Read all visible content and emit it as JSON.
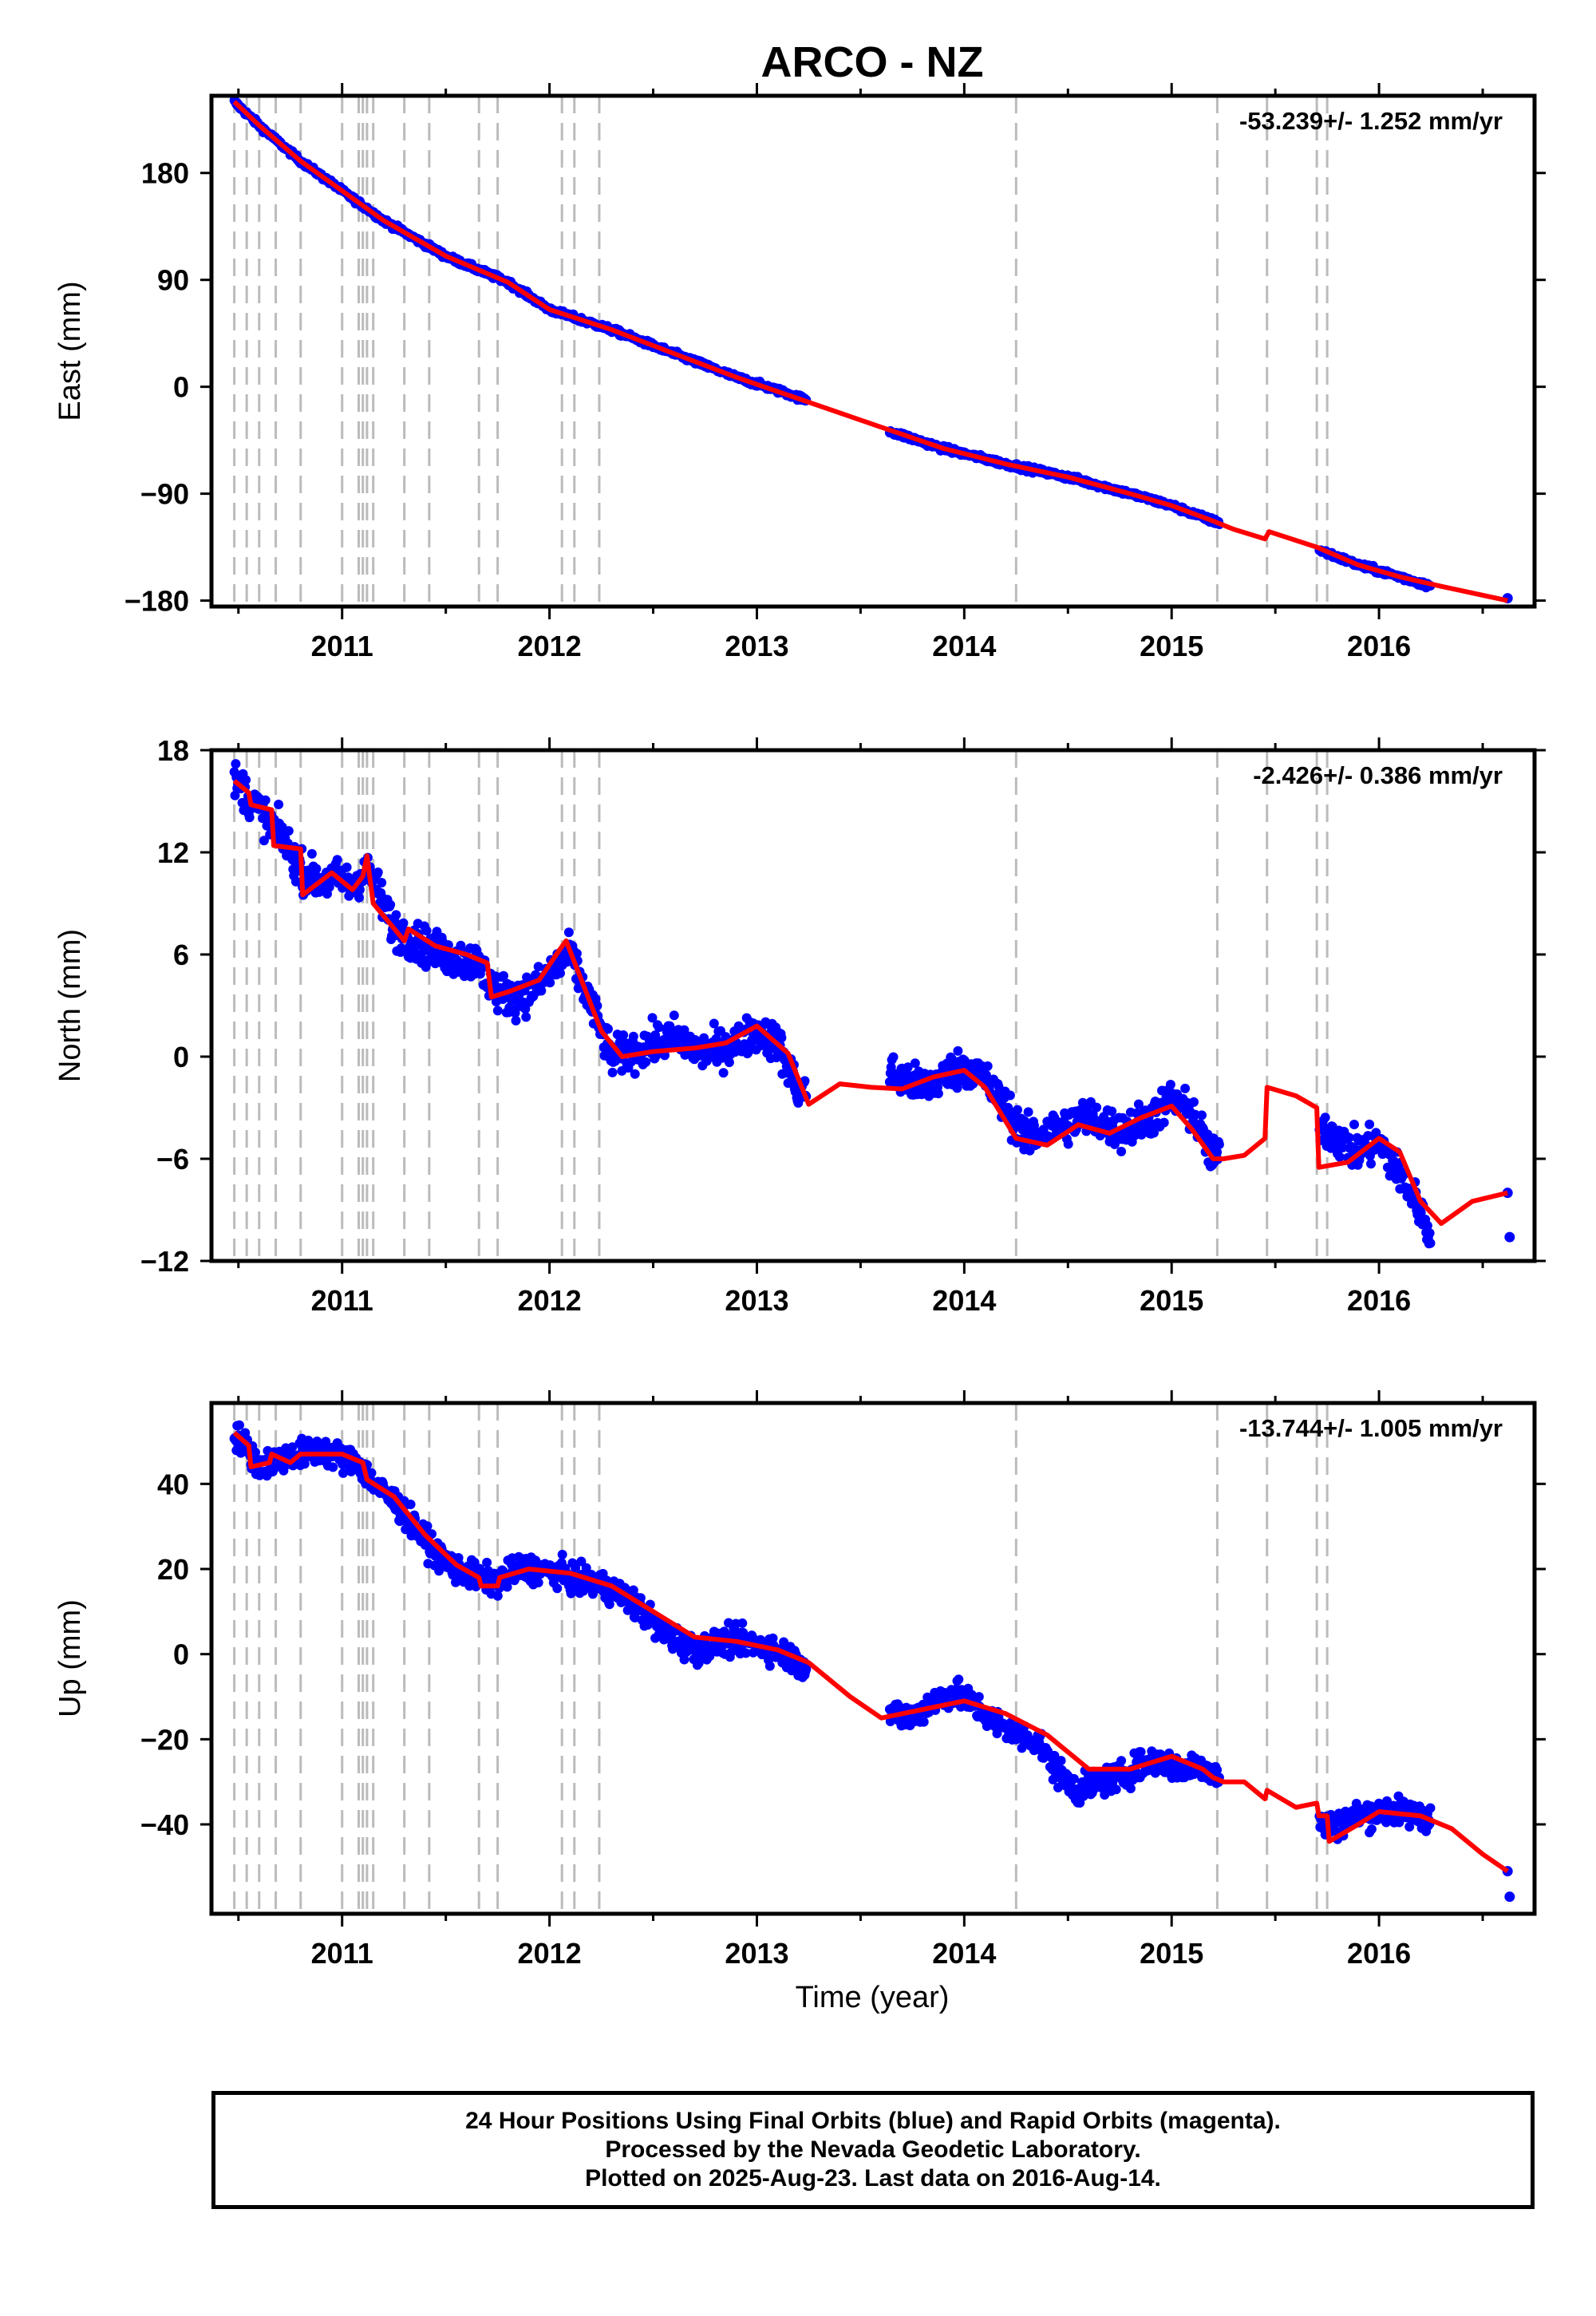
{
  "title": "ARCO - NZ",
  "xlabel": "Time (year)",
  "footer": {
    "line1": "24 Hour Positions Using Final Orbits (blue) and Rapid Orbits (magenta).",
    "line2": "Processed by the Nevada Geodetic Laboratory.",
    "line3": "Plotted on 2025-Aug-23. Last data on 2016-Aug-14."
  },
  "colors": {
    "final_orbits": "#0000ff",
    "model": "#ff0000",
    "event_lines": "#bbbbbb"
  },
  "chart_data": [
    {
      "type": "scatter",
      "component": "east",
      "ylabel": "East (mm)",
      "rate_label": "-53.239+/- 1.252 mm/yr",
      "xlim": [
        2010.37,
        2016.75
      ],
      "ylim": [
        -185,
        245
      ],
      "yticks": [
        180,
        90,
        0,
        -90,
        -180
      ],
      "ytick_labels": [
        "180",
        "90",
        "0",
        "−90",
        "−180"
      ],
      "xticks": [
        2011,
        2012,
        2013,
        2014,
        2015,
        2016
      ],
      "xtick_labels": [
        "2011",
        "2012",
        "2013",
        "2014",
        "2015",
        "2016"
      ],
      "grid": false,
      "series": [
        {
          "kind": "observations",
          "x": [
            2010.48,
            2010.6,
            2010.8,
            2011.0,
            2011.2,
            2011.5,
            2011.8,
            2012.0,
            2012.3,
            2012.6,
            2012.9,
            2013.1,
            2013.22,
            2013.65,
            2013.9,
            2014.2,
            2014.5,
            2014.8,
            2015.0,
            2015.2,
            2015.72,
            2015.9,
            2016.1,
            2016.25,
            2016.62
          ],
          "y": [
            240,
            220,
            190,
            165,
            140,
            110,
            88,
            65,
            48,
            28,
            8,
            -3,
            -10,
            -38,
            -52,
            -65,
            -76,
            -90,
            -100,
            -113,
            -138,
            -150,
            -160,
            -168,
            -178
          ]
        },
        {
          "kind": "model",
          "x": [
            2010.48,
            2010.6,
            2010.8,
            2011.0,
            2011.2,
            2011.5,
            2011.8,
            2012.0,
            2012.3,
            2012.6,
            2012.9,
            2013.2,
            2013.6,
            2013.9,
            2014.2,
            2014.5,
            2014.8,
            2015.0,
            2015.2,
            2015.3,
            2015.45,
            2015.47,
            2015.7,
            2015.9,
            2016.1,
            2016.3,
            2016.62
          ],
          "y": [
            240,
            220,
            190,
            165,
            140,
            110,
            88,
            65,
            48,
            28,
            8,
            -10,
            -34,
            -52,
            -65,
            -76,
            -90,
            -100,
            -113,
            -120,
            -128,
            -122,
            -135,
            -150,
            -160,
            -168,
            -180
          ]
        }
      ]
    },
    {
      "type": "scatter",
      "component": "north",
      "ylabel": "North (mm)",
      "rate_label": "-2.426+/- 0.386 mm/yr",
      "xlim": [
        2010.37,
        2016.75
      ],
      "ylim": [
        -12,
        18
      ],
      "yticks": [
        18,
        12,
        6,
        0,
        -6,
        -12
      ],
      "ytick_labels": [
        "18",
        "12",
        "6",
        "0",
        "−6",
        "−12"
      ],
      "xticks": [
        2011,
        2012,
        2013,
        2014,
        2015,
        2016
      ],
      "xtick_labels": [
        "2011",
        "2012",
        "2013",
        "2014",
        "2015",
        "2016"
      ],
      "grid": false,
      "series": [
        {
          "kind": "observations",
          "x": [
            2010.48,
            2010.52,
            2010.56,
            2010.62,
            2010.7,
            2010.8,
            2010.9,
            2011.0,
            2011.05,
            2011.1,
            2011.15,
            2011.25,
            2011.35,
            2011.45,
            2011.55,
            2011.65,
            2011.75,
            2011.85,
            2011.95,
            2012.05,
            2012.1,
            2012.2,
            2012.3,
            2012.45,
            2012.6,
            2012.75,
            2012.9,
            2013.0,
            2013.1,
            2013.2,
            2013.65,
            2013.8,
            2013.95,
            2014.05,
            2014.2,
            2014.3,
            2014.45,
            2014.6,
            2014.75,
            2014.9,
            2015.0,
            2015.1,
            2015.2,
            2015.72,
            2015.8,
            2015.9,
            2016.0,
            2016.1,
            2016.2,
            2016.24,
            2016.62,
            2016.63
          ],
          "y": [
            16.2,
            15.8,
            15.0,
            14.2,
            13.1,
            11.0,
            10.2,
            10.5,
            9.8,
            11.0,
            10.4,
            7.5,
            6.8,
            6.2,
            5.8,
            5.5,
            3.8,
            3.4,
            4.2,
            5.5,
            6.0,
            3.0,
            0.0,
            0.5,
            1.2,
            0.2,
            0.8,
            1.5,
            0.8,
            -2.0,
            -1.0,
            -1.8,
            -0.8,
            -0.6,
            -3.0,
            -4.8,
            -4.2,
            -3.5,
            -4.4,
            -3.6,
            -2.5,
            -3.4,
            -6.0,
            -4.0,
            -4.8,
            -5.6,
            -5.0,
            -7.0,
            -9.0,
            -10.5,
            -8.0,
            -10.6
          ]
        },
        {
          "kind": "model",
          "x": [
            2010.48,
            2010.55,
            2010.56,
            2010.66,
            2010.67,
            2010.8,
            2010.81,
            2010.95,
            2011.05,
            2011.1,
            2011.12,
            2011.15,
            2011.3,
            2011.32,
            2011.45,
            2011.6,
            2011.7,
            2011.72,
            2011.8,
            2011.95,
            2012.05,
            2012.08,
            2012.25,
            2012.35,
            2012.5,
            2012.7,
            2012.85,
            2013.0,
            2013.15,
            2013.25,
            2013.4,
            2013.55,
            2013.7,
            2013.85,
            2014.0,
            2014.1,
            2014.25,
            2014.4,
            2014.55,
            2014.7,
            2014.85,
            2015.0,
            2015.1,
            2015.2,
            2015.25,
            2015.35,
            2015.45,
            2015.46,
            2015.6,
            2015.7,
            2015.71,
            2015.85,
            2016.0,
            2016.1,
            2016.2,
            2016.3,
            2016.45,
            2016.62
          ],
          "y": [
            16.2,
            15.5,
            14.8,
            14.5,
            12.4,
            12.2,
            9.5,
            10.8,
            9.8,
            10.6,
            11.8,
            9.0,
            6.8,
            7.5,
            6.5,
            6.0,
            5.5,
            3.5,
            3.8,
            4.5,
            6.3,
            6.8,
            1.5,
            0.0,
            0.3,
            0.5,
            0.8,
            1.8,
            0.2,
            -2.8,
            -1.6,
            -1.8,
            -1.9,
            -1.2,
            -0.8,
            -1.8,
            -4.8,
            -5.2,
            -4.0,
            -4.5,
            -3.6,
            -2.9,
            -4.3,
            -6.0,
            -6.0,
            -5.8,
            -4.8,
            -1.8,
            -2.3,
            -3.0,
            -6.5,
            -6.2,
            -4.8,
            -5.6,
            -8.5,
            -9.8,
            -8.5,
            -8.0
          ]
        }
      ]
    },
    {
      "type": "scatter",
      "component": "up",
      "ylabel": "Up (mm)",
      "rate_label": "-13.744+/- 1.005 mm/yr",
      "xlim": [
        2010.37,
        2016.75
      ],
      "ylim": [
        -61,
        59
      ],
      "yticks": [
        40,
        20,
        0,
        -20,
        -40
      ],
      "ytick_labels": [
        "40",
        "20",
        "0",
        "−20",
        "−40"
      ],
      "xticks": [
        2011,
        2012,
        2013,
        2014,
        2015,
        2016
      ],
      "xtick_labels": [
        "2011",
        "2012",
        "2013",
        "2014",
        "2015",
        "2016"
      ],
      "grid": false,
      "series": [
        {
          "kind": "observations",
          "x": [
            2010.48,
            2010.55,
            2010.6,
            2010.7,
            2010.8,
            2010.9,
            2011.0,
            2011.08,
            2011.15,
            2011.25,
            2011.35,
            2011.45,
            2011.55,
            2011.65,
            2011.75,
            2011.85,
            2011.95,
            2012.05,
            2012.15,
            2012.25,
            2012.35,
            2012.45,
            2012.55,
            2012.7,
            2012.85,
            2012.95,
            2013.1,
            2013.2,
            2013.65,
            2013.75,
            2013.85,
            2013.95,
            2014.05,
            2014.15,
            2014.25,
            2014.35,
            2014.45,
            2014.55,
            2014.65,
            2014.75,
            2014.85,
            2014.95,
            2015.05,
            2015.15,
            2015.2,
            2015.72,
            2015.8,
            2015.9,
            2016.0,
            2016.1,
            2016.2,
            2016.25,
            2016.62,
            2016.63
          ],
          "y": [
            52,
            48,
            44,
            46,
            47,
            48,
            46,
            45,
            40,
            36,
            30,
            24,
            20,
            18,
            17,
            20,
            20,
            19,
            17,
            16,
            14,
            10,
            5,
            1,
            3,
            3,
            1,
            -2,
            -14,
            -15,
            -11,
            -9,
            -12,
            -16,
            -19,
            -20,
            -28,
            -32,
            -30,
            -29,
            -26,
            -25,
            -27,
            -26,
            -28,
            -40,
            -40,
            -38,
            -37,
            -37,
            -38,
            -38,
            -51,
            -57
          ]
        },
        {
          "kind": "model",
          "x": [
            2010.48,
            2010.55,
            2010.56,
            2010.65,
            2010.66,
            2010.75,
            2010.8,
            2011.0,
            2011.1,
            2011.12,
            2011.25,
            2011.4,
            2011.55,
            2011.66,
            2011.67,
            2011.75,
            2011.76,
            2011.9,
            2012.1,
            2012.3,
            2012.5,
            2012.7,
            2012.9,
            2013.1,
            2013.25,
            2013.45,
            2013.6,
            2013.8,
            2014.0,
            2014.2,
            2014.4,
            2014.6,
            2014.8,
            2015.0,
            2015.15,
            2015.2,
            2015.25,
            2015.35,
            2015.45,
            2015.46,
            2015.6,
            2015.7,
            2015.71,
            2015.75,
            2015.76,
            2015.9,
            2016.0,
            2016.2,
            2016.35,
            2016.5,
            2016.62
          ],
          "y": [
            52,
            49,
            44,
            45,
            47,
            45,
            47,
            47,
            45,
            41,
            37,
            28,
            21,
            18,
            16,
            16,
            18,
            20,
            19,
            16,
            10,
            4,
            3,
            1,
            -2,
            -10,
            -15,
            -13,
            -11,
            -14,
            -19,
            -27,
            -27,
            -24,
            -27,
            -29,
            -30,
            -30,
            -34,
            -32,
            -36,
            -35,
            -38,
            -38,
            -44,
            -40,
            -37,
            -38,
            -41,
            -47,
            -51
          ]
        }
      ]
    }
  ],
  "event_lines": [
    2010.48,
    2010.54,
    2010.6,
    2010.68,
    2010.8,
    2011.0,
    2011.08,
    2011.1,
    2011.12,
    2011.15,
    2011.3,
    2011.42,
    2011.66,
    2011.75,
    2012.06,
    2012.12,
    2012.24,
    2014.25,
    2015.22,
    2015.46,
    2015.7,
    2015.75
  ]
}
